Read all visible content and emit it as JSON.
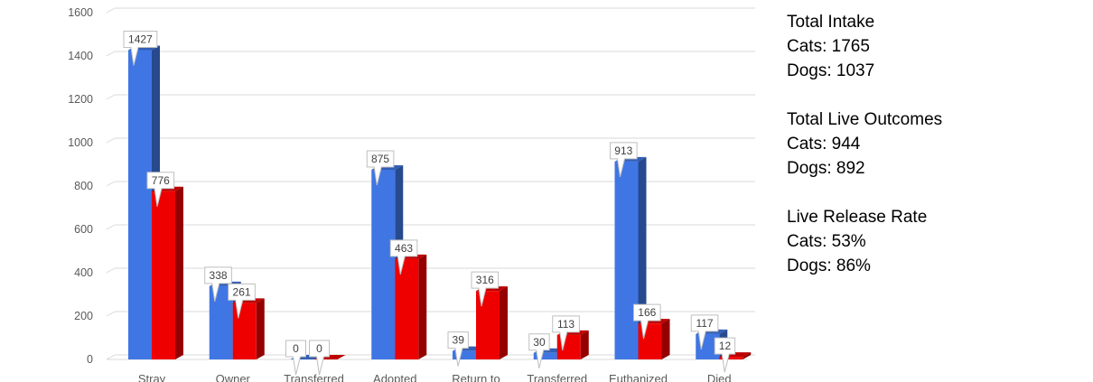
{
  "chart_data": {
    "type": "bar",
    "categories": [
      "Stray",
      "Owner",
      "Transferred",
      "Adopted",
      "Return to",
      "Transferred",
      "Euthanized",
      "Died"
    ],
    "series": [
      {
        "values": [
          1427,
          338,
          0,
          875,
          39,
          30,
          913,
          117
        ],
        "color": "#3f76e4"
      },
      {
        "values": [
          776,
          261,
          0,
          463,
          316,
          113,
          166,
          12
        ],
        "color": "#ee0000"
      }
    ],
    "ylim": [
      0,
      1600
    ],
    "yticks": [
      0,
      200,
      400,
      600,
      800,
      1000,
      1200,
      1400,
      1600
    ],
    "grid": true,
    "legend": "none",
    "bar_style": "3d"
  },
  "summary": {
    "intake": {
      "title": "Total Intake",
      "cats": "Cats: 1765",
      "dogs": "Dogs: 1037"
    },
    "live_outcomes": {
      "title": "Total Live Outcomes",
      "cats": "Cats: 944",
      "dogs": "Dogs: 892"
    },
    "release_rate": {
      "title": "Live Release Rate",
      "cats": "Cats: 53%",
      "dogs": "Dogs: 86%"
    }
  }
}
